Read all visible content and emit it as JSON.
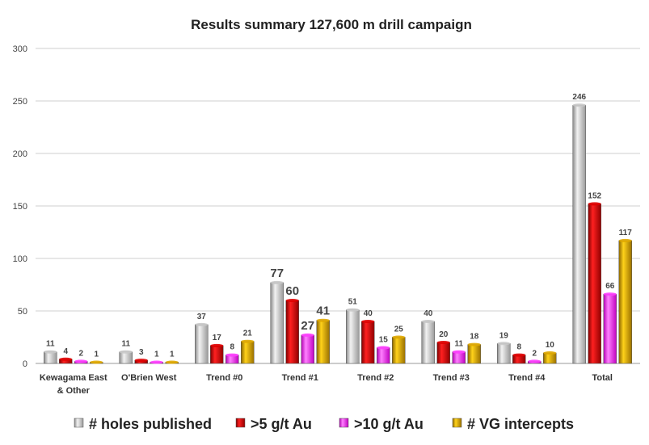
{
  "chart_data": {
    "type": "bar",
    "title": "Results summary 127,600 m drill campaign",
    "xlabel": "",
    "ylabel": "",
    "ylim": [
      0,
      300
    ],
    "yticks": [
      0,
      50,
      100,
      150,
      200,
      250,
      300
    ],
    "grid": true,
    "legend_position": "bottom",
    "categories": [
      "Kewagama East & Other",
      "O'Brien West",
      "Trend #0",
      "Trend #1",
      "Trend #2",
      "Trend #3",
      "Trend #4",
      "Total"
    ],
    "category_lines": [
      [
        "Kewagama East",
        "& Other"
      ],
      [
        "O'Brien West"
      ],
      [
        "Trend #0"
      ],
      [
        "Trend #1"
      ],
      [
        "Trend #2"
      ],
      [
        "Trend #3"
      ],
      [
        "Trend #4"
      ],
      [
        "Total"
      ]
    ],
    "series": [
      {
        "name": "# holes published",
        "color": "#c8c8c8",
        "values": [
          11,
          11,
          37,
          77,
          51,
          40,
          19,
          246
        ]
      },
      {
        "name": ">5 g/t Au",
        "color": "#e00000",
        "values": [
          4,
          3,
          17,
          60,
          40,
          20,
          8,
          152
        ]
      },
      {
        "name": ">10 g/t Au",
        "color": "#ff3cff",
        "values": [
          2,
          1,
          8,
          27,
          15,
          11,
          2,
          66
        ]
      },
      {
        "name": "# VG intercepts",
        "color": "#e0a800",
        "values": [
          1,
          1,
          21,
          41,
          25,
          18,
          10,
          117
        ]
      }
    ]
  }
}
